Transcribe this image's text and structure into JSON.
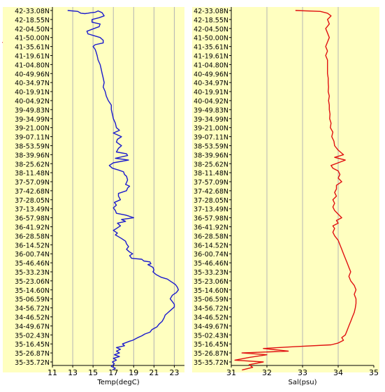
{
  "arrow": {
    "color": "#e02020"
  },
  "colors": {
    "panel_bg": "#ffffc0",
    "grid": "#b4b4b4",
    "axis": "#000000"
  },
  "chart_data": [
    {
      "type": "line",
      "xlabel": "Temp(degC)",
      "xlim": [
        11,
        24
      ],
      "xticks": [
        "11",
        "13",
        "15",
        "17",
        "19",
        "21",
        "23"
      ],
      "y_tick_labels": [
        "42-33.08N",
        "42-18.55N",
        "42-04.50N",
        "41-50.00N",
        "41-35.61N",
        "41-19.61N",
        "41-04.80N",
        "40-49.96N",
        "40-34.97N",
        "40-19.91N",
        "40-04.92N",
        "39-49.83N",
        "39-34.99N",
        "39-21.00N",
        "39-07.11N",
        "38-53.59N",
        "38-39.96N",
        "38-25.62N",
        "38-11.48N",
        "37-57.09N",
        "37-42.68N",
        "37-28.05N",
        "37-13.49N",
        "36-57.98N",
        "36-41.92N",
        "36-28.58N",
        "36-14.52N",
        "36-00.74N",
        "35-46.46N",
        "35-33.23N",
        "35-23.06N",
        "35-14.60N",
        "35-06.59N",
        "34-56.72N",
        "34-46.52N",
        "34-49.67N",
        "35-02.43N",
        "35-16.45N",
        "35-26.87N",
        "35-35.72N"
      ],
      "series": [
        {
          "color": "#1a1acd",
          "values": [
            [
              12.5,
              0
            ],
            [
              13.5,
              0.1
            ],
            [
              13.8,
              0.3
            ],
            [
              14.2,
              0.35
            ],
            [
              14.5,
              0.3
            ],
            [
              14.8,
              0.25
            ],
            [
              15.2,
              0.2
            ],
            [
              15.5,
              0.05
            ],
            [
              15.9,
              0.25
            ],
            [
              16.1,
              0.6
            ],
            [
              15.6,
              0.8
            ],
            [
              14.9,
              1.0
            ],
            [
              14.9,
              1.3
            ],
            [
              15.7,
              1.5
            ],
            [
              15.6,
              1.8
            ],
            [
              15.1,
              2.0
            ],
            [
              14.4,
              2.3
            ],
            [
              14.5,
              2.6
            ],
            [
              15.1,
              2.8
            ],
            [
              15.7,
              3.0
            ],
            [
              16.0,
              3.3
            ],
            [
              16.0,
              3.6
            ],
            [
              15.2,
              3.8
            ],
            [
              15.0,
              4.0
            ],
            [
              15.2,
              4.3
            ],
            [
              15.3,
              4.6
            ],
            [
              15.4,
              5.0
            ],
            [
              15.5,
              5.5
            ],
            [
              15.7,
              6.0
            ],
            [
              15.8,
              6.5
            ],
            [
              15.9,
              7.0
            ],
            [
              16.0,
              7.5
            ],
            [
              16.1,
              8.0
            ],
            [
              16.0,
              8.5
            ],
            [
              16.2,
              9.0
            ],
            [
              16.3,
              9.5
            ],
            [
              16.5,
              10.0
            ],
            [
              16.8,
              10.5
            ],
            [
              16.8,
              11.0
            ],
            [
              16.9,
              11.5
            ],
            [
              17.0,
              12.0
            ],
            [
              17.2,
              12.5
            ],
            [
              17.3,
              13.0
            ],
            [
              17.6,
              13.3
            ],
            [
              17.0,
              13.6
            ],
            [
              17.8,
              14.0
            ],
            [
              17.4,
              14.3
            ],
            [
              17.3,
              14.6
            ],
            [
              17.8,
              15.0
            ],
            [
              17.5,
              15.3
            ],
            [
              17.3,
              15.7
            ],
            [
              18.3,
              15.9
            ],
            [
              18.4,
              16.1
            ],
            [
              17.2,
              16.4
            ],
            [
              18.5,
              16.6
            ],
            [
              17.0,
              16.9
            ],
            [
              16.6,
              17.2
            ],
            [
              16.9,
              17.5
            ],
            [
              17.5,
              17.7
            ],
            [
              18.0,
              17.9
            ],
            [
              18.1,
              18.2
            ],
            [
              18.3,
              18.4
            ],
            [
              18.4,
              18.8
            ],
            [
              18.3,
              19.1
            ],
            [
              18.2,
              19.3
            ],
            [
              18.6,
              19.5
            ],
            [
              18.4,
              19.7
            ],
            [
              18.3,
              20.0
            ],
            [
              17.5,
              20.3
            ],
            [
              17.5,
              20.6
            ],
            [
              17.7,
              21.0
            ],
            [
              17.1,
              21.3
            ],
            [
              17.3,
              21.6
            ],
            [
              17.0,
              21.9
            ],
            [
              17.2,
              22.2
            ],
            [
              17.3,
              22.5
            ],
            [
              18.2,
              22.7
            ],
            [
              18.5,
              22.8
            ],
            [
              19.0,
              23.0
            ],
            [
              17.8,
              23.2
            ],
            [
              18.2,
              23.4
            ],
            [
              17.4,
              23.6
            ],
            [
              17.7,
              23.9
            ],
            [
              17.3,
              24.2
            ],
            [
              17.0,
              24.4
            ],
            [
              17.4,
              24.7
            ],
            [
              17.2,
              24.9
            ],
            [
              17.5,
              25.1
            ],
            [
              17.8,
              25.3
            ],
            [
              18.2,
              25.6
            ],
            [
              18.3,
              25.9
            ],
            [
              18.5,
              26.2
            ],
            [
              18.3,
              26.5
            ],
            [
              18.6,
              26.8
            ],
            [
              18.9,
              27.0
            ],
            [
              18.6,
              27.2
            ],
            [
              18.8,
              27.5
            ],
            [
              19.8,
              27.6
            ],
            [
              20.0,
              27.8
            ],
            [
              20.6,
              27.9
            ],
            [
              20.7,
              28.1
            ],
            [
              20.4,
              28.2
            ],
            [
              20.9,
              28.5
            ],
            [
              21.0,
              28.8
            ],
            [
              20.9,
              29.0
            ],
            [
              21.2,
              29.3
            ],
            [
              21.7,
              29.6
            ],
            [
              22.3,
              29.8
            ],
            [
              22.7,
              30.1
            ],
            [
              23.1,
              30.4
            ],
            [
              23.3,
              30.7
            ],
            [
              23.4,
              31.0
            ],
            [
              23.2,
              31.3
            ],
            [
              22.8,
              31.6
            ],
            [
              22.6,
              32.0
            ],
            [
              22.8,
              32.3
            ],
            [
              23.0,
              32.6
            ],
            [
              23.0,
              32.9
            ],
            [
              22.7,
              33.2
            ],
            [
              22.4,
              33.5
            ],
            [
              22.1,
              33.8
            ],
            [
              22.0,
              34.1
            ],
            [
              21.8,
              34.5
            ],
            [
              21.5,
              34.8
            ],
            [
              21.3,
              35.1
            ],
            [
              20.8,
              35.4
            ],
            [
              20.6,
              35.7
            ],
            [
              20.1,
              35.9
            ],
            [
              19.8,
              36.1
            ],
            [
              19.4,
              36.3
            ],
            [
              18.9,
              36.6
            ],
            [
              18.6,
              36.7
            ],
            [
              17.9,
              37.0
            ],
            [
              18.1,
              37.2
            ],
            [
              17.3,
              37.4
            ],
            [
              17.7,
              37.6
            ],
            [
              17.3,
              37.8
            ],
            [
              17.6,
              38.0
            ],
            [
              17.1,
              38.2
            ],
            [
              17.6,
              38.4
            ],
            [
              17.0,
              38.6
            ],
            [
              17.3,
              38.8
            ],
            [
              16.9,
              39.0
            ],
            [
              17.1,
              39.2
            ],
            [
              16.8,
              39.5
            ],
            [
              17.2,
              39.7
            ],
            [
              16.9,
              39.9
            ]
          ]
        }
      ]
    },
    {
      "type": "line",
      "xlabel": "Sal(psu)",
      "xlim": [
        31,
        35
      ],
      "xticks": [
        "31",
        "32",
        "33",
        "34",
        "35"
      ],
      "y_tick_labels": [
        "42-33.08N",
        "42-18.55N",
        "42-04.50N",
        "41-50.00N",
        "41-35.61N",
        "41-19.61N",
        "41-04.80N",
        "40-49.96N",
        "40-34.97N",
        "40-19.91N",
        "40-04.92N",
        "39-49.83N",
        "39-34.99N",
        "39-21.00N",
        "39-07.11N",
        "38-53.59N",
        "38-39.96N",
        "38-25.62N",
        "38-11.48N",
        "37-57.09N",
        "37-42.68N",
        "37-28.05N",
        "37-13.49N",
        "36-57.98N",
        "36-41.92N",
        "36-28.58N",
        "36-14.52N",
        "36-00.74N",
        "35-46.46N",
        "35-33.23N",
        "35-23.06N",
        "35-14.60N",
        "35-06.59N",
        "34-56.72N",
        "34-46.52N",
        "34-49.67N",
        "35-02.43N",
        "35-16.45N",
        "35-26.87N",
        "35-35.72N"
      ],
      "series": [
        {
          "color": "#e01010",
          "values": [
            [
              32.8,
              0
            ],
            [
              33.5,
              0.1
            ],
            [
              33.7,
              0.3
            ],
            [
              33.8,
              0.6
            ],
            [
              33.7,
              1.0
            ],
            [
              33.75,
              1.5
            ],
            [
              33.65,
              2.0
            ],
            [
              33.7,
              2.5
            ],
            [
              33.75,
              3.0
            ],
            [
              33.7,
              3.5
            ],
            [
              33.65,
              4.0
            ],
            [
              33.7,
              4.5
            ],
            [
              33.65,
              5.0
            ],
            [
              33.7,
              5.5
            ],
            [
              33.7,
              6.0
            ],
            [
              33.7,
              6.5
            ],
            [
              33.7,
              7.0
            ],
            [
              33.72,
              7.5
            ],
            [
              33.72,
              8.0
            ],
            [
              33.73,
              8.5
            ],
            [
              33.72,
              9.0
            ],
            [
              33.75,
              9.5
            ],
            [
              33.73,
              10.0
            ],
            [
              33.75,
              10.5
            ],
            [
              33.75,
              11.0
            ],
            [
              33.77,
              11.5
            ],
            [
              33.76,
              12.0
            ],
            [
              33.8,
              12.5
            ],
            [
              33.78,
              13.0
            ],
            [
              33.85,
              13.5
            ],
            [
              33.82,
              14.0
            ],
            [
              33.88,
              14.5
            ],
            [
              33.9,
              15.0
            ],
            [
              34.0,
              15.5
            ],
            [
              34.15,
              16.0
            ],
            [
              33.9,
              16.3
            ],
            [
              34.2,
              16.6
            ],
            [
              34.0,
              16.9
            ],
            [
              33.8,
              17.2
            ],
            [
              33.85,
              17.5
            ],
            [
              34.0,
              17.8
            ],
            [
              34.05,
              18.2
            ],
            [
              34.0,
              18.6
            ],
            [
              34.1,
              19.0
            ],
            [
              33.95,
              19.4
            ],
            [
              33.95,
              19.8
            ],
            [
              33.9,
              20.2
            ],
            [
              33.95,
              20.6
            ],
            [
              33.85,
              21.0
            ],
            [
              33.9,
              21.4
            ],
            [
              33.85,
              21.8
            ],
            [
              33.9,
              22.2
            ],
            [
              34.0,
              22.6
            ],
            [
              34.1,
              23.0
            ],
            [
              33.95,
              23.3
            ],
            [
              34.0,
              23.6
            ],
            [
              33.85,
              23.9
            ],
            [
              33.9,
              24.2
            ],
            [
              33.85,
              24.6
            ],
            [
              33.9,
              25.0
            ],
            [
              34.0,
              25.5
            ],
            [
              34.05,
              26.0
            ],
            [
              34.1,
              26.5
            ],
            [
              34.15,
              27.0
            ],
            [
              34.2,
              27.5
            ],
            [
              34.25,
              28.0
            ],
            [
              34.3,
              28.5
            ],
            [
              34.35,
              29.0
            ],
            [
              34.3,
              29.5
            ],
            [
              34.35,
              30.0
            ],
            [
              34.45,
              30.5
            ],
            [
              34.5,
              31.0
            ],
            [
              34.45,
              31.5
            ],
            [
              34.5,
              32.0
            ],
            [
              34.5,
              32.5
            ],
            [
              34.48,
              33.0
            ],
            [
              34.45,
              33.5
            ],
            [
              34.4,
              34.0
            ],
            [
              34.35,
              34.5
            ],
            [
              34.3,
              35.0
            ],
            [
              34.25,
              35.5
            ],
            [
              34.2,
              36.0
            ],
            [
              34.1,
              36.3
            ],
            [
              34.15,
              36.6
            ],
            [
              34.0,
              36.9
            ],
            [
              33.8,
              37.1
            ],
            [
              32.8,
              37.3
            ],
            [
              31.9,
              37.5
            ],
            [
              32.6,
              37.8
            ],
            [
              31.3,
              38.0
            ],
            [
              32.0,
              38.2
            ],
            [
              31.5,
              38.5
            ],
            [
              31.1,
              38.8
            ],
            [
              31.9,
              39.0
            ],
            [
              31.5,
              39.3
            ],
            [
              31.6,
              39.6
            ],
            [
              31.3,
              39.9
            ]
          ]
        }
      ]
    }
  ]
}
